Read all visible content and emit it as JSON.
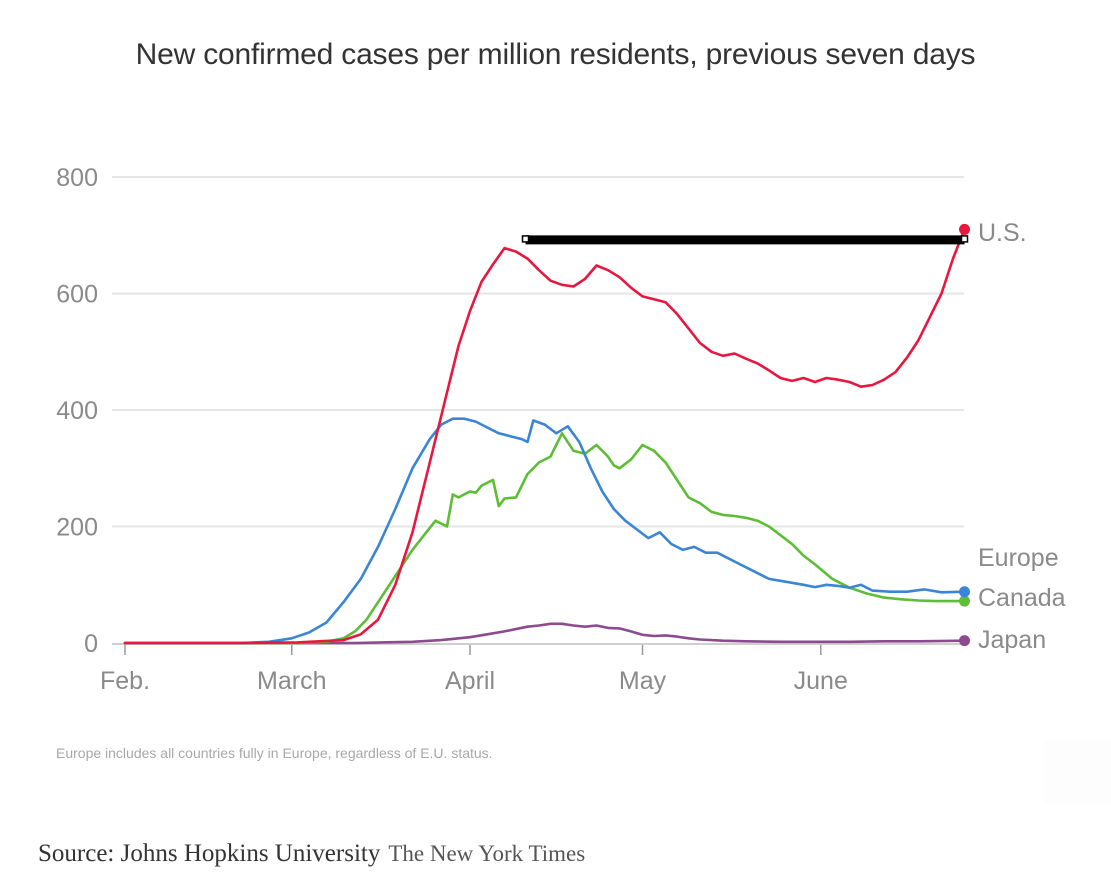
{
  "chart_data": {
    "type": "line",
    "title": "New confirmed cases per million residents, previous seven days",
    "xlabel": "",
    "ylabel": "",
    "ylim": [
      0,
      800
    ],
    "yticks": [
      0,
      200,
      400,
      600,
      800
    ],
    "grid": true,
    "x_unit": "days since Feb. 1",
    "xlim": [
      0,
      146
    ],
    "xticks": [
      {
        "day": 0,
        "label": "Feb."
      },
      {
        "day": 29,
        "label": "March"
      },
      {
        "day": 60,
        "label": "April"
      },
      {
        "day": 90,
        "label": "May"
      },
      {
        "day": 121,
        "label": "June"
      }
    ],
    "series": [
      {
        "name": "U.S.",
        "color": "#e8173f",
        "x": [
          0,
          20,
          30,
          38,
          41,
          44,
          47,
          50,
          53,
          56,
          58,
          60,
          62,
          64,
          66,
          68,
          70,
          72,
          74,
          76,
          78,
          80,
          82,
          84,
          86,
          88,
          90,
          92,
          94,
          96,
          98,
          100,
          102,
          104,
          106,
          108,
          110,
          112,
          114,
          116,
          118,
          120,
          122,
          124,
          126,
          128,
          130,
          132,
          134,
          136,
          138,
          140,
          142,
          144,
          146
        ],
        "values": [
          0,
          0,
          1,
          5,
          15,
          40,
          100,
          190,
          310,
          430,
          510,
          570,
          620,
          650,
          678,
          672,
          660,
          640,
          622,
          615,
          612,
          625,
          648,
          640,
          628,
          610,
          595,
          590,
          585,
          565,
          540,
          515,
          500,
          493,
          497,
          488,
          480,
          468,
          455,
          450,
          455,
          448,
          455,
          452,
          448,
          440,
          443,
          452,
          465,
          490,
          520,
          560,
          600,
          660,
          710
        ]
      },
      {
        "name": "Europe",
        "color": "#3a86d4",
        "x": [
          0,
          20,
          25,
          29,
          32,
          35,
          38,
          41,
          44,
          47,
          50,
          53,
          55,
          57,
          59,
          61,
          63,
          65,
          67,
          69,
          70,
          71,
          73,
          75,
          77,
          79,
          81,
          83,
          85,
          87,
          89,
          91,
          93,
          95,
          97,
          99,
          101,
          103,
          106,
          109,
          112,
          115,
          118,
          120,
          122,
          124,
          126,
          128,
          130,
          133,
          136,
          139,
          142,
          146
        ],
        "values": [
          0,
          0,
          2,
          8,
          18,
          35,
          70,
          110,
          165,
          230,
          300,
          350,
          375,
          385,
          385,
          380,
          370,
          360,
          355,
          350,
          345,
          382,
          375,
          360,
          372,
          345,
          300,
          260,
          230,
          210,
          195,
          180,
          190,
          170,
          160,
          165,
          155,
          155,
          140,
          125,
          110,
          105,
          100,
          96,
          100,
          98,
          95,
          100,
          90,
          88,
          88,
          92,
          87,
          88
        ]
      },
      {
        "name": "Canada",
        "color": "#5dbd35",
        "x": [
          0,
          30,
          35,
          38,
          40,
          42,
          44,
          46,
          48,
          50,
          52,
          54,
          56,
          57,
          58,
          60,
          61,
          62,
          64,
          65,
          66,
          68,
          70,
          71,
          72,
          74,
          76,
          78,
          80,
          82,
          84,
          85,
          86,
          88,
          90,
          92,
          94,
          96,
          98,
          100,
          102,
          104,
          106,
          108,
          110,
          112,
          114,
          116,
          118,
          120,
          123,
          126,
          129,
          132,
          135,
          138,
          141,
          143,
          146
        ],
        "values": [
          0,
          0,
          2,
          8,
          20,
          40,
          70,
          100,
          130,
          160,
          185,
          210,
          200,
          255,
          250,
          260,
          258,
          270,
          280,
          235,
          248,
          250,
          290,
          300,
          310,
          320,
          360,
          330,
          325,
          340,
          320,
          305,
          300,
          315,
          340,
          330,
          310,
          280,
          250,
          240,
          225,
          220,
          218,
          215,
          210,
          200,
          185,
          170,
          150,
          135,
          110,
          95,
          85,
          78,
          75,
          73,
          72,
          72,
          72
        ]
      },
      {
        "name": "Japan",
        "color": "#8b4b8e",
        "x": [
          0,
          40,
          50,
          55,
          60,
          63,
          66,
          70,
          72,
          74,
          76,
          78,
          80,
          82,
          84,
          86,
          88,
          90,
          92,
          94,
          96,
          98,
          100,
          104,
          108,
          114,
          120,
          126,
          132,
          138,
          146
        ],
        "values": [
          0,
          0,
          2,
          5,
          10,
          15,
          20,
          28,
          30,
          33,
          33,
          30,
          28,
          30,
          26,
          25,
          20,
          14,
          12,
          13,
          11,
          8,
          6,
          4,
          3,
          2,
          2,
          2,
          3,
          3,
          4
        ]
      }
    ],
    "end_labels": [
      {
        "series": "U.S.",
        "label": "U.S."
      },
      {
        "series": "Europe",
        "label": "Europe"
      },
      {
        "series": "Canada",
        "label": "Canada"
      },
      {
        "series": "Japan",
        "label": "Japan"
      }
    ],
    "annotation_bar": {
      "from_day": 70,
      "to_day": 146,
      "value": 692,
      "color": "#000000"
    }
  },
  "note": "Europe includes all countries fully in Europe, regardless of E.U. status.",
  "source": {
    "label": "Source: Johns Hopkins University",
    "organization": "The New York Times"
  }
}
